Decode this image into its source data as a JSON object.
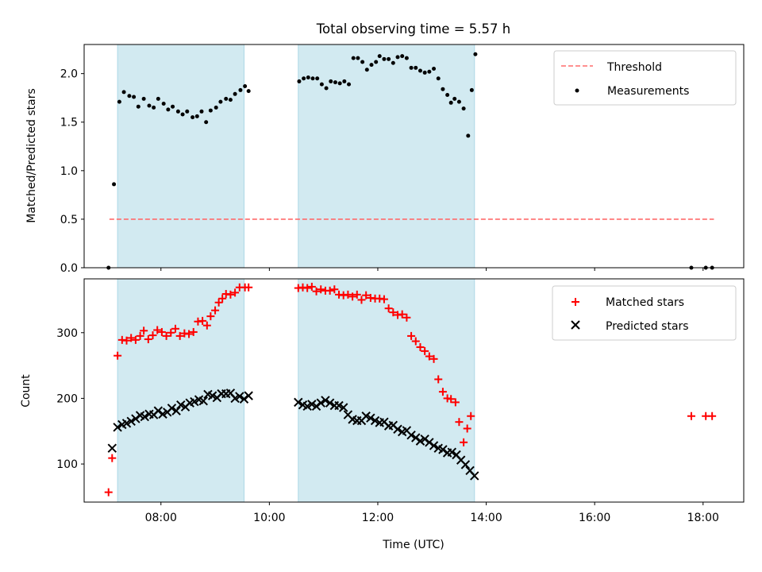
{
  "figure": {
    "title": "Total observing time = 5.57 h",
    "xlabel": "Time (UTC)"
  },
  "colors": {
    "shade": "#add8e6",
    "threshold": "#ff6b6b",
    "matched": "#ff0000",
    "predicted": "#000000",
    "measurement": "#000000"
  },
  "chart_data": [
    {
      "type": "scatter",
      "ylabel": "Matched/Predicted stars",
      "xlim": [
        "06:35",
        "18:45"
      ],
      "ylim": [
        0,
        2.3
      ],
      "yticks": [
        "0.0",
        "0.5",
        "1.0",
        "1.5",
        "2.0"
      ],
      "legend_position": "top-right",
      "shaded_intervals": [
        [
          "07:12",
          "09:32"
        ],
        [
          "10:32",
          "13:47"
        ]
      ],
      "threshold": {
        "name": "Threshold",
        "value": 0.5,
        "x_range": [
          "07:03",
          "18:12"
        ]
      },
      "series": [
        {
          "name": "Measurements",
          "points": [
            [
              "07:02",
              0.0
            ],
            [
              "07:08",
              0.86
            ],
            [
              "07:14",
              1.71
            ],
            [
              "07:19",
              1.81
            ],
            [
              "07:25",
              1.77
            ],
            [
              "07:30",
              1.76
            ],
            [
              "07:35",
              1.66
            ],
            [
              "07:41",
              1.74
            ],
            [
              "07:47",
              1.67
            ],
            [
              "07:52",
              1.65
            ],
            [
              "07:57",
              1.74
            ],
            [
              "08:03",
              1.69
            ],
            [
              "08:08",
              1.63
            ],
            [
              "08:13",
              1.66
            ],
            [
              "08:19",
              1.61
            ],
            [
              "08:24",
              1.58
            ],
            [
              "08:29",
              1.61
            ],
            [
              "08:35",
              1.55
            ],
            [
              "08:40",
              1.56
            ],
            [
              "08:45",
              1.61
            ],
            [
              "08:50",
              1.5
            ],
            [
              "08:55",
              1.62
            ],
            [
              "09:01",
              1.65
            ],
            [
              "09:06",
              1.71
            ],
            [
              "09:12",
              1.74
            ],
            [
              "09:17",
              1.73
            ],
            [
              "09:22",
              1.79
            ],
            [
              "09:28",
              1.83
            ],
            [
              "09:33",
              1.87
            ],
            [
              "09:37",
              1.82
            ],
            [
              "10:33",
              1.92
            ],
            [
              "10:38",
              1.95
            ],
            [
              "10:43",
              1.96
            ],
            [
              "10:48",
              1.95
            ],
            [
              "10:53",
              1.95
            ],
            [
              "10:58",
              1.89
            ],
            [
              "11:03",
              1.85
            ],
            [
              "11:08",
              1.92
            ],
            [
              "11:13",
              1.91
            ],
            [
              "11:18",
              1.9
            ],
            [
              "11:23",
              1.92
            ],
            [
              "11:28",
              1.89
            ],
            [
              "11:33",
              2.16
            ],
            [
              "11:38",
              2.16
            ],
            [
              "11:43",
              2.12
            ],
            [
              "11:48",
              2.04
            ],
            [
              "11:53",
              2.09
            ],
            [
              "11:58",
              2.12
            ],
            [
              "12:02",
              2.18
            ],
            [
              "12:07",
              2.15
            ],
            [
              "12:12",
              2.15
            ],
            [
              "12:17",
              2.11
            ],
            [
              "12:22",
              2.17
            ],
            [
              "12:27",
              2.18
            ],
            [
              "12:32",
              2.16
            ],
            [
              "12:37",
              2.06
            ],
            [
              "12:42",
              2.06
            ],
            [
              "12:47",
              2.03
            ],
            [
              "12:52",
              2.01
            ],
            [
              "12:57",
              2.02
            ],
            [
              "13:02",
              2.05
            ],
            [
              "13:07",
              1.95
            ],
            [
              "13:12",
              1.84
            ],
            [
              "13:17",
              1.78
            ],
            [
              "13:21",
              1.7
            ],
            [
              "13:25",
              1.74
            ],
            [
              "13:30",
              1.71
            ],
            [
              "13:35",
              1.64
            ],
            [
              "13:40",
              1.36
            ],
            [
              "13:44",
              1.83
            ],
            [
              "13:48",
              2.2
            ],
            [
              "17:47",
              0.0
            ],
            [
              "18:03",
              0.0
            ],
            [
              "18:10",
              0.0
            ]
          ]
        }
      ]
    },
    {
      "type": "scatter",
      "ylabel": "Count",
      "xlim": [
        "06:35",
        "18:45"
      ],
      "ylim": [
        42,
        382
      ],
      "yticks": [
        "100",
        "200",
        "300"
      ],
      "xticks": [
        "08:00",
        "10:00",
        "12:00",
        "14:00",
        "16:00",
        "18:00"
      ],
      "legend_position": "top-right",
      "shaded_intervals": [
        [
          "07:12",
          "09:32"
        ],
        [
          "10:32",
          "13:47"
        ]
      ],
      "series": [
        {
          "name": "Matched stars",
          "marker": "plus",
          "points": [
            [
              "07:02",
              57
            ],
            [
              "07:06",
              109
            ],
            [
              "07:12",
              265
            ],
            [
              "07:17",
              289
            ],
            [
              "07:22",
              288
            ],
            [
              "07:27",
              292
            ],
            [
              "07:32",
              289
            ],
            [
              "07:37",
              295
            ],
            [
              "07:41",
              303
            ],
            [
              "07:46",
              290
            ],
            [
              "07:51",
              296
            ],
            [
              "07:56",
              304
            ],
            [
              "08:01",
              301
            ],
            [
              "08:06",
              295
            ],
            [
              "08:11",
              300
            ],
            [
              "08:16",
              306
            ],
            [
              "08:21",
              295
            ],
            [
              "08:26",
              299
            ],
            [
              "08:31",
              298
            ],
            [
              "08:36",
              301
            ],
            [
              "08:41",
              317
            ],
            [
              "08:46",
              318
            ],
            [
              "08:51",
              311
            ],
            [
              "08:55",
              325
            ],
            [
              "09:00",
              334
            ],
            [
              "09:04",
              346
            ],
            [
              "09:08",
              352
            ],
            [
              "09:12",
              359
            ],
            [
              "09:17",
              358
            ],
            [
              "09:22",
              361
            ],
            [
              "09:27",
              369
            ],
            [
              "09:33",
              369
            ],
            [
              "09:37",
              369
            ],
            [
              "10:32",
              368
            ],
            [
              "10:37",
              369
            ],
            [
              "10:42",
              368
            ],
            [
              "10:47",
              370
            ],
            [
              "10:52",
              363
            ],
            [
              "10:57",
              366
            ],
            [
              "11:02",
              364
            ],
            [
              "11:07",
              364
            ],
            [
              "11:12",
              366
            ],
            [
              "11:17",
              358
            ],
            [
              "11:22",
              357
            ],
            [
              "11:27",
              358
            ],
            [
              "11:32",
              355
            ],
            [
              "11:37",
              358
            ],
            [
              "11:42",
              350
            ],
            [
              "11:47",
              357
            ],
            [
              "11:52",
              353
            ],
            [
              "11:57",
              352
            ],
            [
              "12:02",
              352
            ],
            [
              "12:07",
              351
            ],
            [
              "12:12",
              337
            ],
            [
              "12:17",
              331
            ],
            [
              "12:22",
              327
            ],
            [
              "12:27",
              328
            ],
            [
              "12:32",
              323
            ],
            [
              "12:37",
              295
            ],
            [
              "12:42",
              287
            ],
            [
              "12:47",
              278
            ],
            [
              "12:52",
              272
            ],
            [
              "12:57",
              264
            ],
            [
              "13:02",
              260
            ],
            [
              "13:07",
              229
            ],
            [
              "13:12",
              210
            ],
            [
              "13:17",
              200
            ],
            [
              "13:21",
              199
            ],
            [
              "13:26",
              194
            ],
            [
              "13:30",
              164
            ],
            [
              "13:35",
              133
            ],
            [
              "13:39",
              154
            ],
            [
              "13:43",
              173
            ],
            [
              "17:47",
              173
            ],
            [
              "18:03",
              173
            ],
            [
              "18:10",
              173
            ]
          ]
        },
        {
          "name": "Predicted stars",
          "marker": "x",
          "points": [
            [
              "07:06",
              124
            ],
            [
              "07:12",
              156
            ],
            [
              "07:17",
              160
            ],
            [
              "07:22",
              162
            ],
            [
              "07:27",
              165
            ],
            [
              "07:32",
              169
            ],
            [
              "07:37",
              174
            ],
            [
              "07:42",
              172
            ],
            [
              "07:47",
              176
            ],
            [
              "07:52",
              175
            ],
            [
              "07:57",
              181
            ],
            [
              "08:02",
              176
            ],
            [
              "08:07",
              179
            ],
            [
              "08:12",
              185
            ],
            [
              "08:17",
              181
            ],
            [
              "08:22",
              190
            ],
            [
              "08:27",
              187
            ],
            [
              "08:32",
              193
            ],
            [
              "08:37",
              195
            ],
            [
              "08:42",
              198
            ],
            [
              "08:47",
              196
            ],
            [
              "08:52",
              206
            ],
            [
              "08:57",
              204
            ],
            [
              "09:02",
              201
            ],
            [
              "09:07",
              207
            ],
            [
              "09:12",
              207
            ],
            [
              "09:17",
              208
            ],
            [
              "09:22",
              200
            ],
            [
              "09:27",
              203
            ],
            [
              "09:32",
              199
            ],
            [
              "09:37",
              204
            ],
            [
              "10:32",
              194
            ],
            [
              "10:37",
              190
            ],
            [
              "10:42",
              188
            ],
            [
              "10:47",
              191
            ],
            [
              "10:52",
              188
            ],
            [
              "10:57",
              193
            ],
            [
              "11:02",
              197
            ],
            [
              "11:07",
              193
            ],
            [
              "11:12",
              189
            ],
            [
              "11:17",
              189
            ],
            [
              "11:22",
              186
            ],
            [
              "11:27",
              175
            ],
            [
              "11:32",
              168
            ],
            [
              "11:37",
              166
            ],
            [
              "11:42",
              166
            ],
            [
              "11:47",
              173
            ],
            [
              "11:52",
              170
            ],
            [
              "11:57",
              166
            ],
            [
              "12:02",
              163
            ],
            [
              "12:07",
              164
            ],
            [
              "12:12",
              158
            ],
            [
              "12:17",
              159
            ],
            [
              "12:22",
              153
            ],
            [
              "12:27",
              149
            ],
            [
              "12:32",
              151
            ],
            [
              "12:37",
              144
            ],
            [
              "12:42",
              140
            ],
            [
              "12:47",
              135
            ],
            [
              "12:52",
              138
            ],
            [
              "12:57",
              133
            ],
            [
              "13:02",
              128
            ],
            [
              "13:07",
              124
            ],
            [
              "13:12",
              122
            ],
            [
              "13:17",
              117
            ],
            [
              "13:22",
              118
            ],
            [
              "13:27",
              114
            ],
            [
              "13:32",
              106
            ],
            [
              "13:37",
              99
            ],
            [
              "13:42",
              90
            ],
            [
              "13:47",
              82
            ]
          ]
        }
      ]
    }
  ]
}
